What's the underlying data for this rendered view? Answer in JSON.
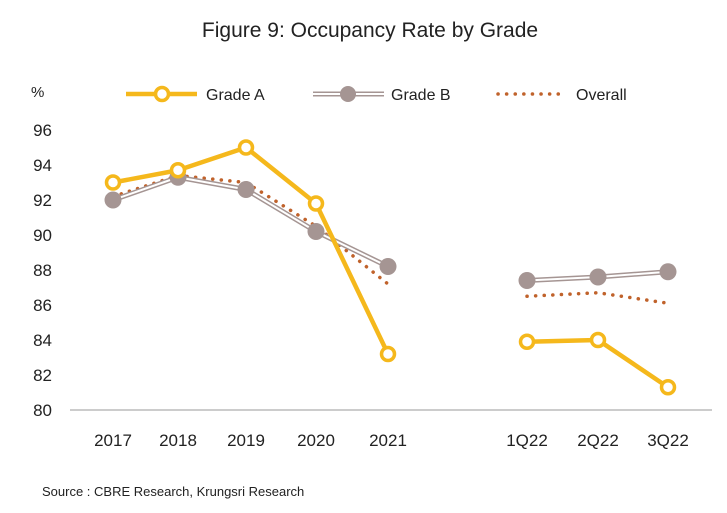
{
  "chart_data": {
    "type": "line",
    "title": "Figure 9: Occupancy Rate by Grade",
    "unit_label": "%",
    "categories": [
      "2017",
      "2018",
      "2019",
      "2020",
      "2021",
      "1Q22",
      "2Q22",
      "3Q22"
    ],
    "yticks": [
      "80",
      "82",
      "84",
      "86",
      "88",
      "90",
      "92",
      "94",
      "96"
    ],
    "ylim": [
      80,
      96
    ],
    "grid": false,
    "legend_position": "top",
    "series": [
      {
        "name": "Grade A",
        "color": "#F5B81C",
        "style": "solid-hollow-markers",
        "values": [
          93.0,
          93.7,
          95.0,
          91.8,
          83.2,
          83.9,
          84.0,
          81.3
        ]
      },
      {
        "name": "Grade B",
        "color": "#A59593",
        "style": "double-line-filled-markers",
        "values": [
          92.0,
          93.3,
          92.6,
          90.2,
          88.2,
          87.4,
          87.6,
          87.9
        ]
      },
      {
        "name": "Overall",
        "color": "#C0622B",
        "style": "dotted",
        "values": [
          92.2,
          93.4,
          93.0,
          90.5,
          87.2,
          86.5,
          86.7,
          86.1
        ]
      }
    ],
    "source": "Source : CBRE Research, Krungsri Research"
  }
}
